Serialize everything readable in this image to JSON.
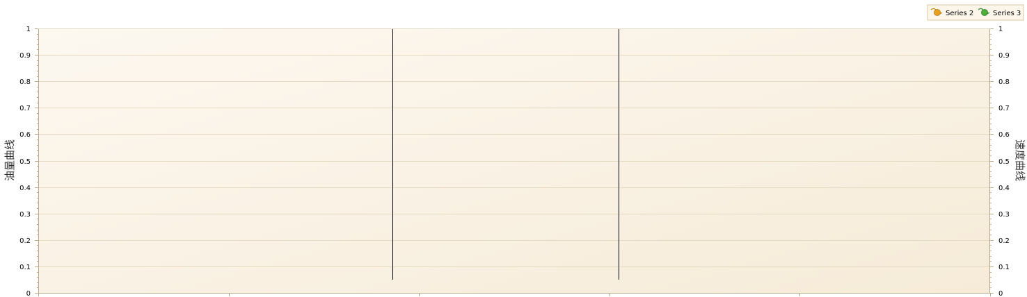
{
  "chart_data": {
    "type": "line",
    "title": "",
    "ylabel_left": "油量曲线",
    "ylabel_right": "速度曲线",
    "y_ticks": [
      "0",
      "0.1",
      "0.2",
      "0.3",
      "0.4",
      "0.5",
      "0.6",
      "0.7",
      "0.8",
      "0.9",
      "1"
    ],
    "ylim": [
      0,
      1
    ],
    "y2lim": [
      0,
      1
    ],
    "grid": true,
    "legend_position": "top-right",
    "series": [
      {
        "name": "Series 2",
        "color": "#E8A020",
        "values": []
      },
      {
        "name": "Series 3",
        "color": "#4CAF3A",
        "values": []
      }
    ],
    "vertical_markers": [
      {
        "x_fraction": 0.372,
        "y_from": 0.05,
        "y_to": 1
      },
      {
        "x_fraction": 0.61,
        "y_from": 0.05,
        "y_to": 1
      }
    ]
  },
  "colors": {
    "plot_bg_light": "#FDF8F0",
    "plot_bg_dark": "#F6EBD8",
    "grid": "#E6D9C2",
    "axis": "#B8A88A",
    "marker_line": "#000000",
    "legend_border": "#D9C7A4",
    "legend_bg": "#FBF5EA"
  }
}
